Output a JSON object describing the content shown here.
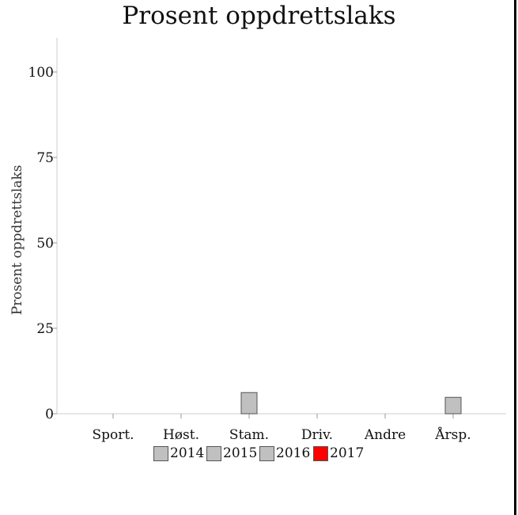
{
  "chart_data": {
    "type": "bar",
    "title": "Prosent oppdrettslaks",
    "xlabel": "",
    "ylabel": "Prosent oppdrettslaks",
    "categories": [
      "Sport.",
      "Høst.",
      "Stam.",
      "Driv.",
      "Andre",
      "Årsp."
    ],
    "yticks": [
      0,
      25,
      50,
      75,
      100
    ],
    "ylim": [
      0,
      110
    ],
    "grid": false,
    "legend_position": "bottom",
    "highlight_color": "#ff0000",
    "base_color": "#c0c0c0",
    "series": [
      {
        "name": "2014",
        "color": "#c0c0c0",
        "values": [
          null,
          null,
          null,
          null,
          null,
          null
        ]
      },
      {
        "name": "2015",
        "color": "#c0c0c0",
        "values": [
          null,
          null,
          null,
          null,
          null,
          null
        ]
      },
      {
        "name": "2016",
        "color": "#c0c0c0",
        "values": [
          null,
          null,
          6.2,
          null,
          null,
          4.8
        ]
      },
      {
        "name": "2017",
        "color": "#ff0000",
        "values": [
          null,
          null,
          null,
          null,
          null,
          null
        ]
      }
    ]
  }
}
